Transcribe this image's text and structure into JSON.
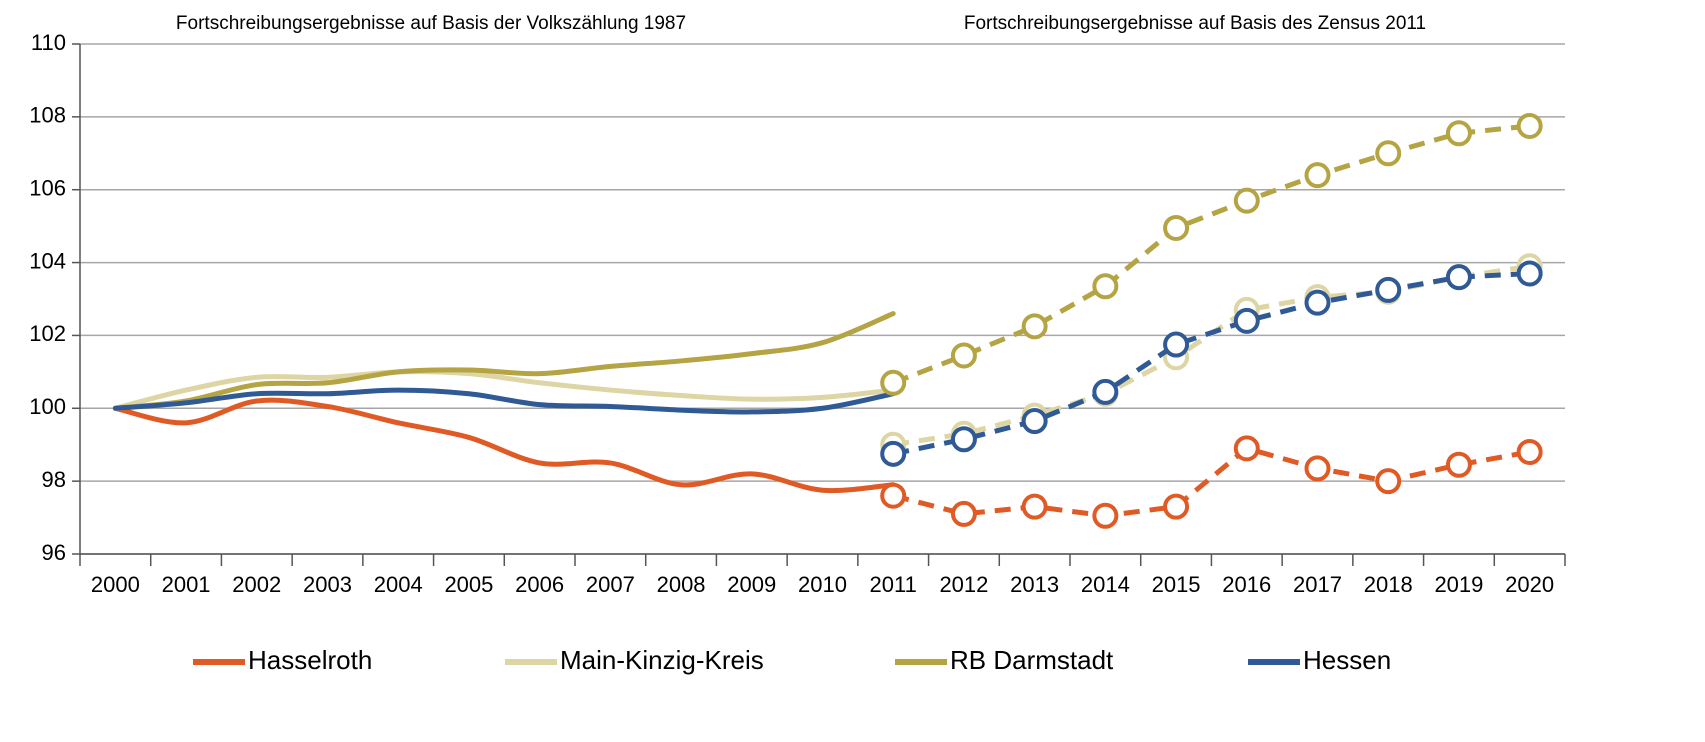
{
  "chart_data": {
    "type": "line",
    "annotations": [
      "Fortschreibungsergebnisse auf Basis der Volkszählung 1987",
      "Fortschreibungsergebnisse auf Basis des Zensus 2011"
    ],
    "categories": [
      "2000",
      "2001",
      "2002",
      "2003",
      "2004",
      "2005",
      "2006",
      "2007",
      "2008",
      "2009",
      "2010",
      "2011",
      "2012",
      "2013",
      "2014",
      "2015",
      "2016",
      "2017",
      "2018",
      "2019",
      "2020"
    ],
    "ylim": [
      96,
      110
    ],
    "yticks": [
      96,
      98,
      100,
      102,
      104,
      106,
      108,
      110
    ],
    "grid": true,
    "legend": "bottom",
    "series": [
      {
        "name": "Hasselroth",
        "color": "#e05a26",
        "values_1987": [
          100,
          99.6,
          100.2,
          100.05,
          99.6,
          99.2,
          98.5,
          98.5,
          97.9,
          98.2,
          97.75,
          97.9,
          null,
          null,
          null,
          null,
          null,
          null,
          null,
          null,
          null
        ],
        "values_2011": [
          null,
          null,
          null,
          null,
          null,
          null,
          null,
          null,
          null,
          null,
          null,
          97.6,
          97.1,
          97.3,
          97.05,
          97.3,
          98.9,
          98.35,
          98.0,
          98.45,
          98.8
        ]
      },
      {
        "name": "Main-Kinzig-Kreis",
        "color": "#ddd5a3",
        "values_1987": [
          100,
          100.5,
          100.85,
          100.85,
          101.0,
          100.95,
          100.7,
          100.5,
          100.35,
          100.25,
          100.3,
          100.5,
          null,
          null,
          null,
          null,
          null,
          null,
          null,
          null,
          null
        ],
        "values_2011": [
          null,
          null,
          null,
          null,
          null,
          null,
          null,
          null,
          null,
          null,
          null,
          99.0,
          99.3,
          99.8,
          100.4,
          101.4,
          102.7,
          103.05,
          103.2,
          103.6,
          103.9
        ]
      },
      {
        "name": "RB Darmstadt",
        "color": "#b5a444",
        "values_1987": [
          100,
          100.2,
          100.65,
          100.7,
          101.0,
          101.05,
          100.95,
          101.15,
          101.3,
          101.5,
          101.8,
          102.6,
          null,
          null,
          null,
          null,
          null,
          null,
          null,
          null,
          null
        ],
        "values_2011": [
          null,
          null,
          null,
          null,
          null,
          null,
          null,
          null,
          null,
          null,
          null,
          100.7,
          101.45,
          102.25,
          103.35,
          104.95,
          105.7,
          106.4,
          107.0,
          107.55,
          107.75
        ]
      },
      {
        "name": "Hessen",
        "color": "#2f5a96",
        "values_1987": [
          100,
          100.15,
          100.4,
          100.4,
          100.5,
          100.4,
          100.1,
          100.05,
          99.95,
          99.9,
          100.0,
          100.4,
          null,
          null,
          null,
          null,
          null,
          null,
          null,
          null,
          null
        ],
        "values_2011": [
          null,
          null,
          null,
          null,
          null,
          null,
          null,
          null,
          null,
          null,
          null,
          98.75,
          99.15,
          99.65,
          100.45,
          101.75,
          102.4,
          102.9,
          103.25,
          103.6,
          103.7
        ]
      }
    ]
  }
}
